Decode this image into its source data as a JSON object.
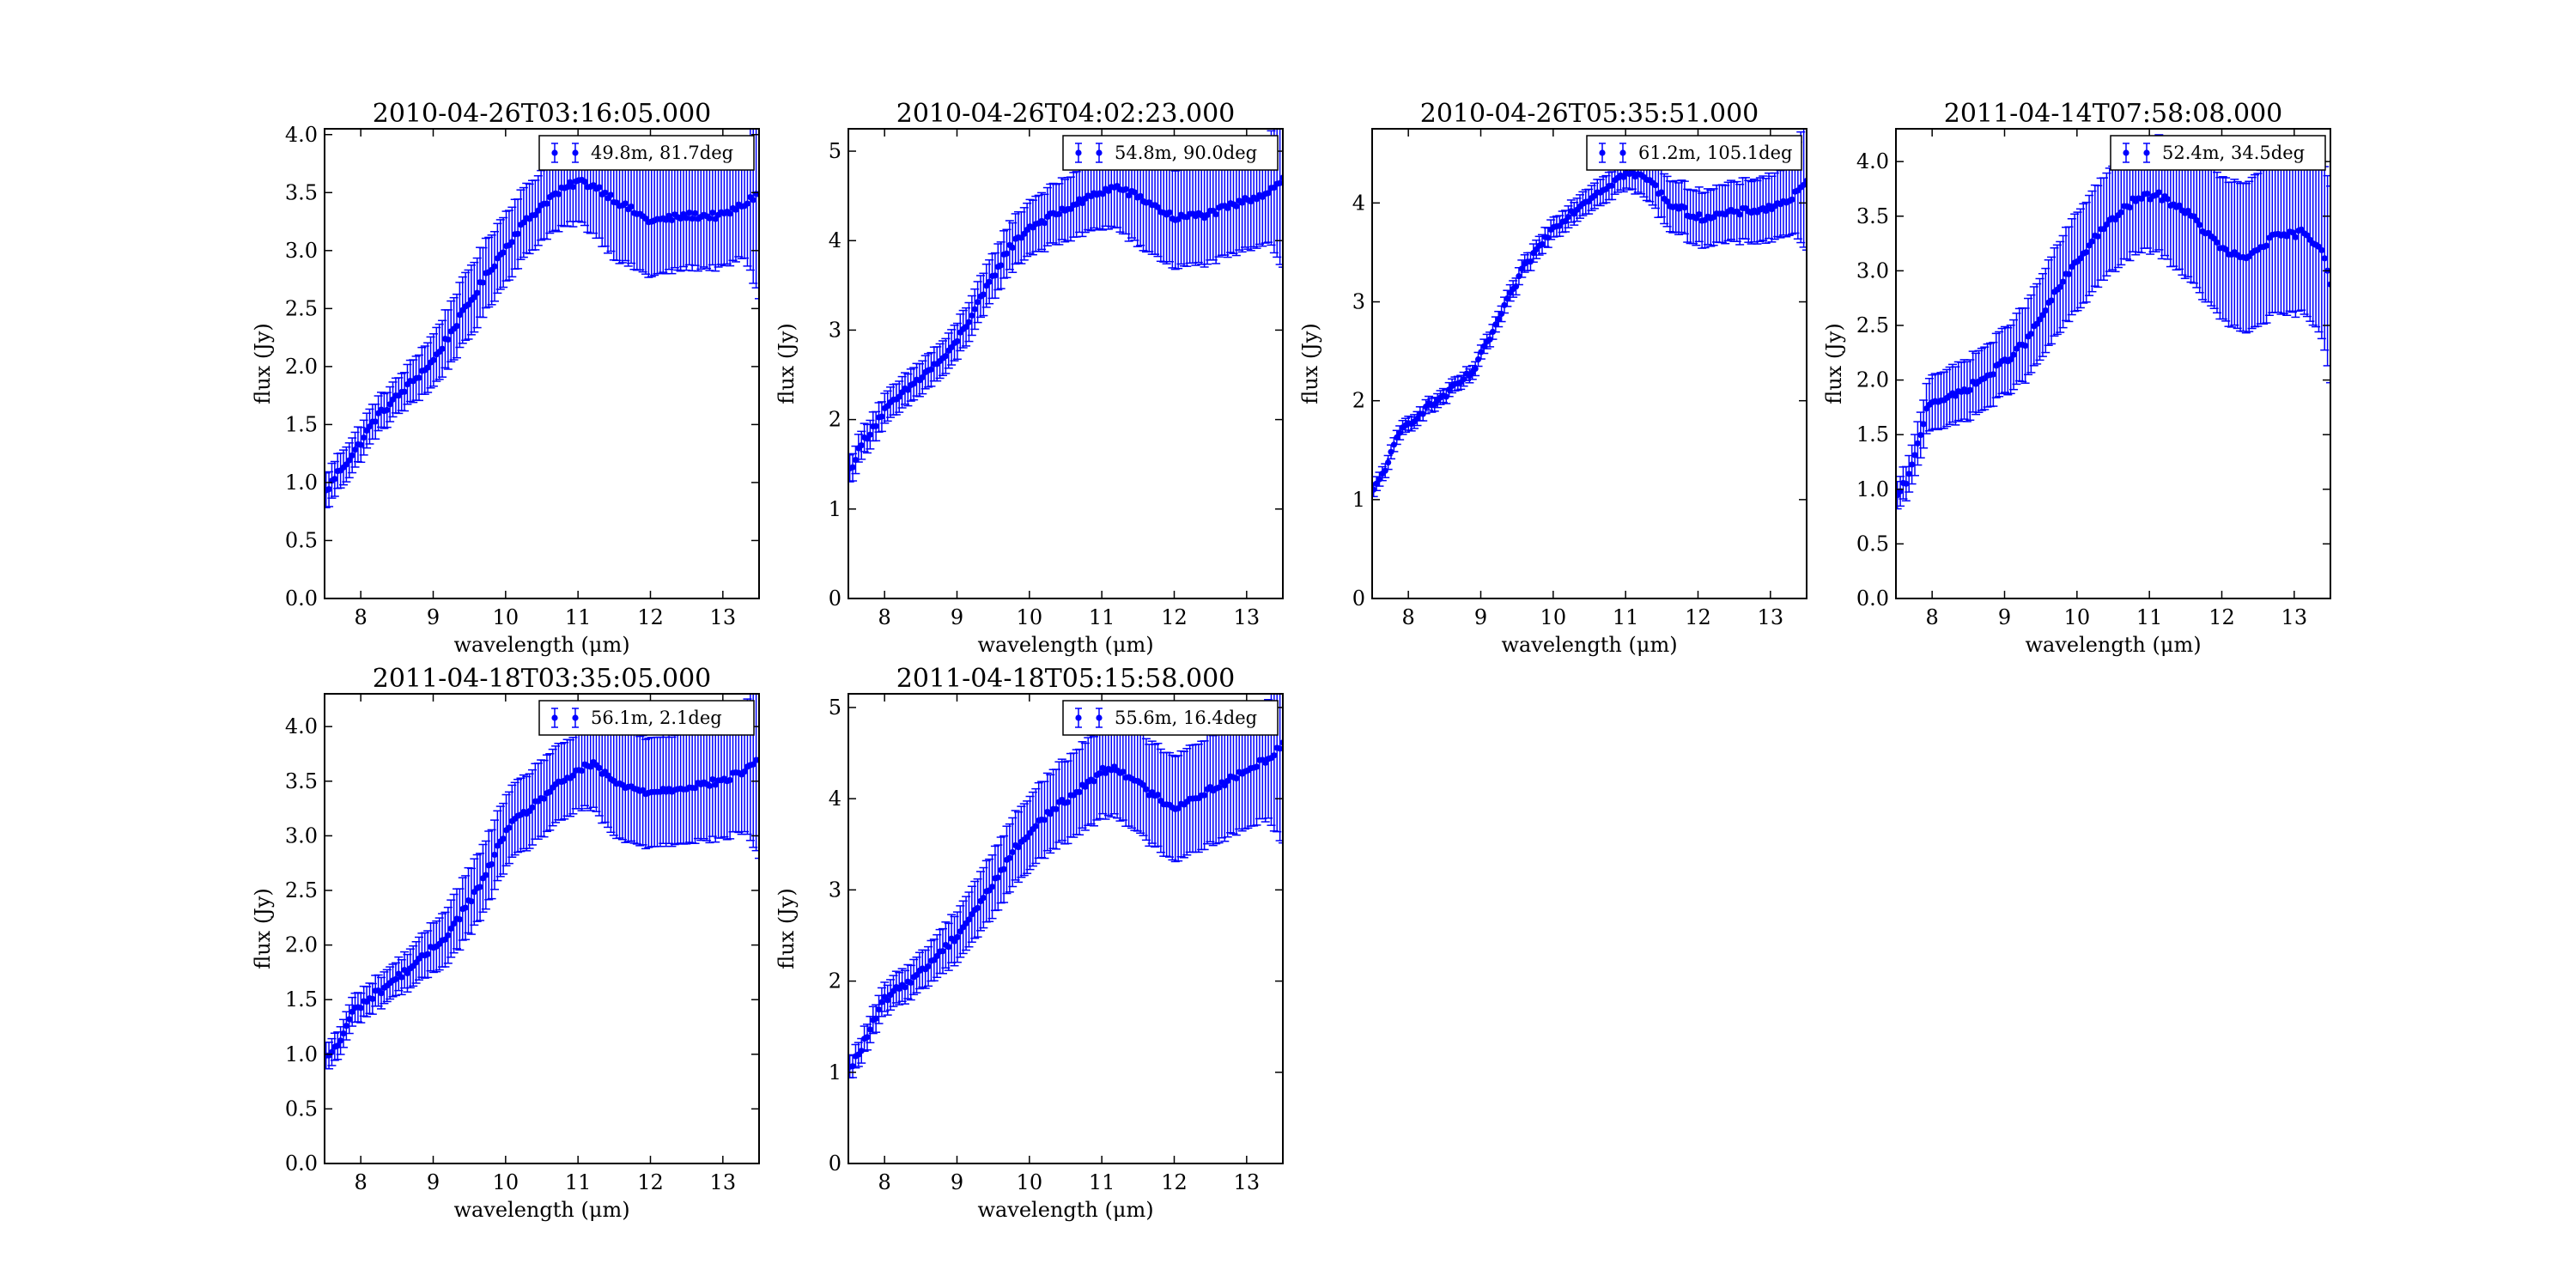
{
  "chart_data": [
    {
      "type": "scatter",
      "title": "2010-04-26T03:16:05.000",
      "xlabel": "wavelength (μm)",
      "ylabel": "flux (Jy)",
      "xlim": [
        7.5,
        13.5
      ],
      "ylim": [
        0,
        4.05
      ],
      "xticks": [
        8,
        9,
        10,
        11,
        12,
        13
      ],
      "yticks": [
        0.0,
        0.5,
        1.0,
        1.5,
        2.0,
        2.5,
        3.0,
        3.5,
        4.0
      ],
      "ytick_decimals": 1,
      "legend": {
        "label": "49.8m, 81.7deg",
        "position": "upper right"
      },
      "color": "#0000ff",
      "knots": [
        [
          7.5,
          0.9
        ],
        [
          7.7,
          1.1
        ],
        [
          7.9,
          1.25
        ],
        [
          8.2,
          1.55
        ],
        [
          8.6,
          1.8
        ],
        [
          9.0,
          2.05
        ],
        [
          9.4,
          2.45
        ],
        [
          9.8,
          2.85
        ],
        [
          10.2,
          3.2
        ],
        [
          10.6,
          3.45
        ],
        [
          11.0,
          3.6
        ],
        [
          11.25,
          3.55
        ],
        [
          11.6,
          3.4
        ],
        [
          12.0,
          3.25
        ],
        [
          12.5,
          3.3
        ],
        [
          13.0,
          3.3
        ],
        [
          13.3,
          3.4
        ],
        [
          13.5,
          3.5
        ]
      ],
      "error_knots": [
        [
          7.5,
          0.15
        ],
        [
          8.5,
          0.15
        ],
        [
          9.5,
          0.3
        ],
        [
          10.5,
          0.3
        ],
        [
          11.0,
          0.35
        ],
        [
          11.5,
          0.5
        ],
        [
          12.5,
          0.45
        ],
        [
          13.3,
          0.45
        ],
        [
          13.5,
          0.9
        ]
      ]
    },
    {
      "type": "scatter",
      "title": "2010-04-26T04:02:23.000",
      "xlabel": "wavelength (μm)",
      "ylabel": "flux (Jy)",
      "xlim": [
        7.5,
        13.5
      ],
      "ylim": [
        0,
        5.25
      ],
      "xticks": [
        8,
        9,
        10,
        11,
        12,
        13
      ],
      "yticks": [
        0,
        1,
        2,
        3,
        4,
        5
      ],
      "ytick_decimals": 0,
      "legend": {
        "label": "54.8m, 90.0deg",
        "position": "upper right"
      },
      "color": "#0000ff",
      "knots": [
        [
          7.5,
          1.4
        ],
        [
          7.7,
          1.75
        ],
        [
          8.0,
          2.1
        ],
        [
          8.4,
          2.4
        ],
        [
          8.9,
          2.75
        ],
        [
          9.3,
          3.3
        ],
        [
          9.7,
          3.9
        ],
        [
          10.0,
          4.15
        ],
        [
          10.5,
          4.35
        ],
        [
          11.0,
          4.55
        ],
        [
          11.2,
          4.6
        ],
        [
          11.6,
          4.45
        ],
        [
          12.0,
          4.25
        ],
        [
          12.5,
          4.3
        ],
        [
          13.0,
          4.45
        ],
        [
          13.3,
          4.55
        ],
        [
          13.5,
          4.7
        ]
      ],
      "error_knots": [
        [
          7.5,
          0.15
        ],
        [
          9.0,
          0.2
        ],
        [
          10.0,
          0.3
        ],
        [
          11.0,
          0.4
        ],
        [
          11.5,
          0.55
        ],
        [
          12.5,
          0.55
        ],
        [
          13.3,
          0.55
        ],
        [
          13.5,
          1.0
        ]
      ]
    },
    {
      "type": "scatter",
      "title": "2010-04-26T05:35:51.000",
      "xlabel": "wavelength (μm)",
      "ylabel": "flux (Jy)",
      "xlim": [
        7.5,
        13.5
      ],
      "ylim": [
        0,
        4.75
      ],
      "xticks": [
        8,
        9,
        10,
        11,
        12,
        13
      ],
      "yticks": [
        0,
        1,
        2,
        3,
        4
      ],
      "ytick_decimals": 0,
      "legend": {
        "label": "61.2m, 105.1deg",
        "position": "upper right"
      },
      "color": "#0000ff",
      "knots": [
        [
          7.5,
          1.05
        ],
        [
          7.7,
          1.35
        ],
        [
          7.9,
          1.7
        ],
        [
          8.2,
          1.9
        ],
        [
          8.5,
          2.05
        ],
        [
          8.9,
          2.3
        ],
        [
          9.2,
          2.75
        ],
        [
          9.6,
          3.35
        ],
        [
          10.0,
          3.75
        ],
        [
          10.5,
          4.05
        ],
        [
          11.0,
          4.3
        ],
        [
          11.3,
          4.25
        ],
        [
          11.6,
          4.0
        ],
        [
          12.0,
          3.85
        ],
        [
          12.5,
          3.9
        ],
        [
          13.0,
          3.95
        ],
        [
          13.3,
          4.05
        ],
        [
          13.5,
          4.2
        ]
      ],
      "error_knots": [
        [
          7.5,
          0.07
        ],
        [
          9.0,
          0.07
        ],
        [
          10.0,
          0.1
        ],
        [
          11.0,
          0.15
        ],
        [
          11.5,
          0.25
        ],
        [
          12.5,
          0.3
        ],
        [
          13.3,
          0.35
        ],
        [
          13.5,
          0.7
        ]
      ]
    },
    {
      "type": "scatter",
      "title": "2011-04-14T07:58:08.000",
      "xlabel": "wavelength (μm)",
      "ylabel": "flux (Jy)",
      "xlim": [
        7.5,
        13.5
      ],
      "ylim": [
        0,
        4.3
      ],
      "xticks": [
        8,
        9,
        10,
        11,
        12,
        13
      ],
      "yticks": [
        0.0,
        0.5,
        1.0,
        1.5,
        2.0,
        2.5,
        3.0,
        3.5,
        4.0
      ],
      "ytick_decimals": 1,
      "legend": {
        "label": "52.4m, 34.5deg",
        "position": "upper right"
      },
      "color": "#0000ff",
      "knots": [
        [
          7.5,
          0.9
        ],
        [
          7.7,
          1.15
        ],
        [
          7.8,
          1.4
        ],
        [
          7.95,
          1.8
        ],
        [
          8.3,
          1.85
        ],
        [
          8.8,
          2.05
        ],
        [
          9.3,
          2.35
        ],
        [
          9.8,
          2.9
        ],
        [
          10.3,
          3.35
        ],
        [
          10.8,
          3.65
        ],
        [
          11.1,
          3.7
        ],
        [
          11.5,
          3.55
        ],
        [
          12.0,
          3.2
        ],
        [
          12.3,
          3.1
        ],
        [
          12.7,
          3.3
        ],
        [
          13.1,
          3.35
        ],
        [
          13.4,
          3.2
        ],
        [
          13.5,
          2.9
        ]
      ],
      "error_knots": [
        [
          7.5,
          0.12
        ],
        [
          8.0,
          0.25
        ],
        [
          9.0,
          0.3
        ],
        [
          10.0,
          0.45
        ],
        [
          11.0,
          0.5
        ],
        [
          11.5,
          0.6
        ],
        [
          12.5,
          0.7
        ],
        [
          13.3,
          0.75
        ],
        [
          13.5,
          0.9
        ]
      ]
    },
    {
      "type": "scatter",
      "title": "2011-04-18T03:35:05.000",
      "xlabel": "wavelength (μm)",
      "ylabel": "flux (Jy)",
      "xlim": [
        7.5,
        13.5
      ],
      "ylim": [
        0,
        4.3
      ],
      "xticks": [
        8,
        9,
        10,
        11,
        12,
        13
      ],
      "yticks": [
        0.0,
        0.5,
        1.0,
        1.5,
        2.0,
        2.5,
        3.0,
        3.5,
        4.0
      ],
      "ytick_decimals": 1,
      "legend": {
        "label": "56.1m, 2.1deg",
        "position": "upper right"
      },
      "color": "#0000ff",
      "knots": [
        [
          7.5,
          0.95
        ],
        [
          7.7,
          1.1
        ],
        [
          7.9,
          1.4
        ],
        [
          8.3,
          1.6
        ],
        [
          8.8,
          1.85
        ],
        [
          9.2,
          2.1
        ],
        [
          9.7,
          2.6
        ],
        [
          10.0,
          3.05
        ],
        [
          10.5,
          3.35
        ],
        [
          11.0,
          3.6
        ],
        [
          11.2,
          3.65
        ],
        [
          11.6,
          3.45
        ],
        [
          12.0,
          3.4
        ],
        [
          12.5,
          3.45
        ],
        [
          13.0,
          3.5
        ],
        [
          13.3,
          3.6
        ],
        [
          13.5,
          3.7
        ]
      ],
      "error_knots": [
        [
          7.5,
          0.12
        ],
        [
          8.5,
          0.15
        ],
        [
          9.5,
          0.3
        ],
        [
          10.5,
          0.35
        ],
        [
          11.0,
          0.35
        ],
        [
          11.5,
          0.5
        ],
        [
          12.5,
          0.5
        ],
        [
          13.3,
          0.55
        ],
        [
          13.5,
          0.9
        ]
      ]
    },
    {
      "type": "scatter",
      "title": "2011-04-18T05:15:58.000",
      "xlabel": "wavelength (μm)",
      "ylabel": "flux (Jy)",
      "xlim": [
        7.5,
        13.5
      ],
      "ylim": [
        0,
        5.15
      ],
      "xticks": [
        8,
        9,
        10,
        11,
        12,
        13
      ],
      "yticks": [
        0,
        1,
        2,
        3,
        4,
        5
      ],
      "ytick_decimals": 0,
      "legend": {
        "label": "55.6m, 16.4deg",
        "position": "upper right"
      },
      "color": "#0000ff",
      "knots": [
        [
          7.5,
          1.0
        ],
        [
          7.7,
          1.3
        ],
        [
          8.0,
          1.8
        ],
        [
          8.5,
          2.1
        ],
        [
          9.0,
          2.5
        ],
        [
          9.4,
          2.95
        ],
        [
          9.8,
          3.45
        ],
        [
          10.2,
          3.8
        ],
        [
          10.7,
          4.1
        ],
        [
          11.0,
          4.3
        ],
        [
          11.2,
          4.35
        ],
        [
          11.6,
          4.1
        ],
        [
          12.0,
          3.9
        ],
        [
          12.5,
          4.1
        ],
        [
          13.0,
          4.3
        ],
        [
          13.3,
          4.45
        ],
        [
          13.5,
          4.6
        ]
      ],
      "error_knots": [
        [
          7.5,
          0.12
        ],
        [
          8.5,
          0.2
        ],
        [
          9.5,
          0.35
        ],
        [
          10.5,
          0.45
        ],
        [
          11.0,
          0.5
        ],
        [
          11.5,
          0.55
        ],
        [
          12.5,
          0.6
        ],
        [
          13.3,
          0.65
        ],
        [
          13.5,
          1.1
        ]
      ]
    }
  ]
}
